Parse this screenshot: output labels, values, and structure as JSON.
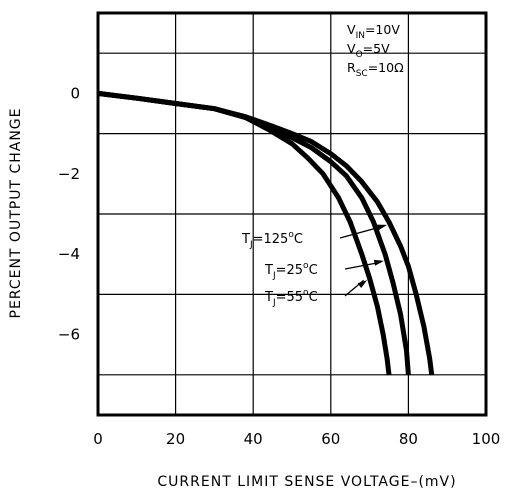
{
  "chart_data": {
    "type": "line",
    "title": "",
    "xlabel": "CURRENT LIMIT SENSE VOLTAGE–(mV)",
    "ylabel": "PERCENT OUTPUT CHANGE",
    "xlim": [
      0,
      100
    ],
    "ylim": [
      -8,
      2
    ],
    "x_ticks": [
      "0",
      "20",
      "40",
      "60",
      "80",
      "100"
    ],
    "y_ticks": [
      "0",
      "−2",
      "−4",
      "−6"
    ],
    "x_tick_values": [
      0,
      20,
      40,
      60,
      80,
      100
    ],
    "y_tick_values": [
      0,
      -2,
      -4,
      -6
    ],
    "grid": true,
    "conditions": [
      {
        "main": "V",
        "sub": "IN",
        "rest": "=10V"
      },
      {
        "main": "V",
        "sub": "O",
        "rest": "=5V"
      },
      {
        "main": "R",
        "sub": "SC",
        "rest": "=10Ω"
      }
    ],
    "series": [
      {
        "name": "T_J=125°C",
        "label": {
          "main": "T",
          "sub": "J",
          "rest": "=125",
          "deg": "o",
          "unit": "C"
        },
        "x": [
          0,
          10,
          20,
          30,
          38,
          44,
          50,
          55,
          60,
          64,
          68,
          72,
          75,
          78,
          80,
          82,
          84,
          85.5,
          86
        ],
        "y": [
          0,
          -0.12,
          -0.25,
          -0.38,
          -0.58,
          -0.78,
          -1.0,
          -1.2,
          -1.5,
          -1.8,
          -2.2,
          -2.7,
          -3.2,
          -3.8,
          -4.3,
          -5.0,
          -5.8,
          -6.6,
          -7.0
        ]
      },
      {
        "name": "T_J=25°C",
        "label": {
          "main": "T",
          "sub": "J",
          "rest": "=25",
          "deg": "o",
          "unit": "C"
        },
        "x": [
          0,
          10,
          20,
          30,
          38,
          44,
          50,
          55,
          60,
          64,
          68,
          71,
          74,
          76,
          78,
          79.5,
          80
        ],
        "y": [
          0,
          -0.12,
          -0.25,
          -0.38,
          -0.6,
          -0.85,
          -1.1,
          -1.35,
          -1.7,
          -2.05,
          -2.6,
          -3.2,
          -4.0,
          -4.7,
          -5.5,
          -6.4,
          -7.0
        ]
      },
      {
        "name": "T_J=55°C",
        "label": {
          "main": "T",
          "sub": "J",
          "rest": "=55",
          "deg": "o",
          "unit": "C"
        },
        "x": [
          0,
          10,
          20,
          30,
          38,
          44,
          50,
          54,
          58,
          62,
          65,
          68,
          70,
          72,
          73.5,
          74.5,
          75
        ],
        "y": [
          0,
          -0.12,
          -0.25,
          -0.38,
          -0.6,
          -0.9,
          -1.25,
          -1.6,
          -2.0,
          -2.6,
          -3.2,
          -4.0,
          -4.6,
          -5.3,
          -6.0,
          -6.6,
          -7.0
        ]
      }
    ]
  }
}
